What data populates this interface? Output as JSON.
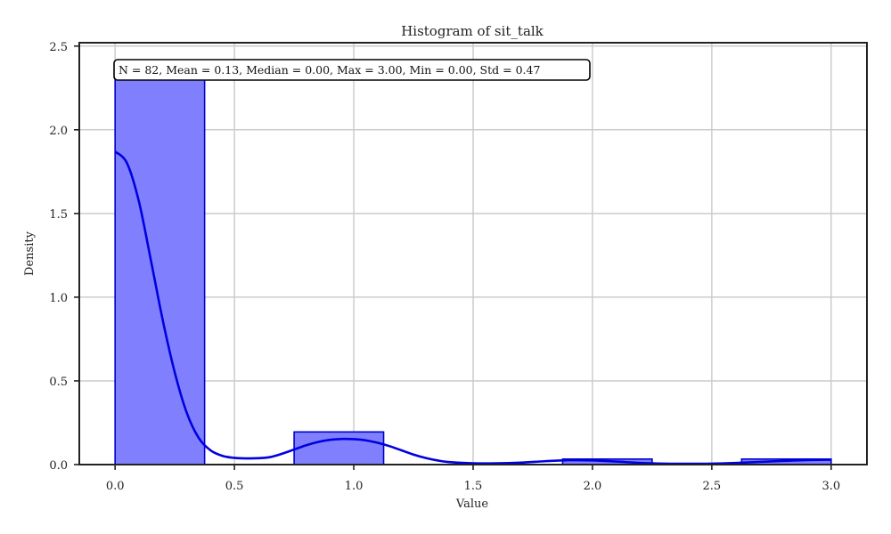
{
  "chart_data": {
    "type": "bar",
    "title": "Histogram of sit_talk",
    "xlabel": "Value",
    "ylabel": "Density",
    "xlim": [
      -0.15,
      3.15
    ],
    "ylim": [
      0,
      2.52
    ],
    "xticks": [
      0.0,
      0.5,
      1.0,
      1.5,
      2.0,
      2.5,
      3.0
    ],
    "xtick_labels": [
      "0.0",
      "0.5",
      "1.0",
      "1.5",
      "2.0",
      "2.5",
      "3.0"
    ],
    "yticks": [
      0.0,
      0.5,
      1.0,
      1.5,
      2.0,
      2.5
    ],
    "ytick_labels": [
      "0.0",
      "0.5",
      "1.0",
      "1.5",
      "2.0",
      "2.5"
    ],
    "grid": true,
    "bins": [
      {
        "x0": 0.0,
        "x1": 0.375,
        "value": 2.32
      },
      {
        "x0": 0.75,
        "x1": 1.125,
        "value": 0.195
      },
      {
        "x0": 1.875,
        "x1": 2.25,
        "value": 0.033
      },
      {
        "x0": 2.625,
        "x1": 3.0,
        "value": 0.033
      }
    ],
    "kde": {
      "x": [
        0.0,
        0.05,
        0.1,
        0.15,
        0.2,
        0.25,
        0.3,
        0.35,
        0.4,
        0.45,
        0.5,
        0.55,
        0.6,
        0.65,
        0.7,
        0.75,
        0.8,
        0.85,
        0.9,
        0.95,
        1.0,
        1.05,
        1.1,
        1.15,
        1.2,
        1.25,
        1.3,
        1.35,
        1.4,
        1.5,
        1.6,
        1.7,
        1.8,
        1.9,
        2.0,
        2.1,
        2.2,
        2.3,
        2.4,
        2.5,
        2.6,
        2.7,
        2.8,
        2.9,
        3.0
      ],
      "y": [
        1.87,
        1.8,
        1.57,
        1.22,
        0.86,
        0.55,
        0.31,
        0.16,
        0.085,
        0.052,
        0.04,
        0.037,
        0.038,
        0.045,
        0.065,
        0.09,
        0.115,
        0.135,
        0.148,
        0.153,
        0.152,
        0.145,
        0.13,
        0.11,
        0.085,
        0.06,
        0.04,
        0.025,
        0.015,
        0.008,
        0.008,
        0.012,
        0.02,
        0.026,
        0.025,
        0.018,
        0.01,
        0.006,
        0.005,
        0.006,
        0.01,
        0.016,
        0.022,
        0.027,
        0.029
      ]
    },
    "colors": {
      "bar_fill": "#8080ff",
      "bar_edge": "#0000cc",
      "kde_line": "#0000e0",
      "grid": "#cccccc",
      "axis": "#222222"
    },
    "annotation": "N = 82, Mean = 0.13, Median = 0.00, Max = 3.00, Min = 0.00, Std = 0.47"
  }
}
